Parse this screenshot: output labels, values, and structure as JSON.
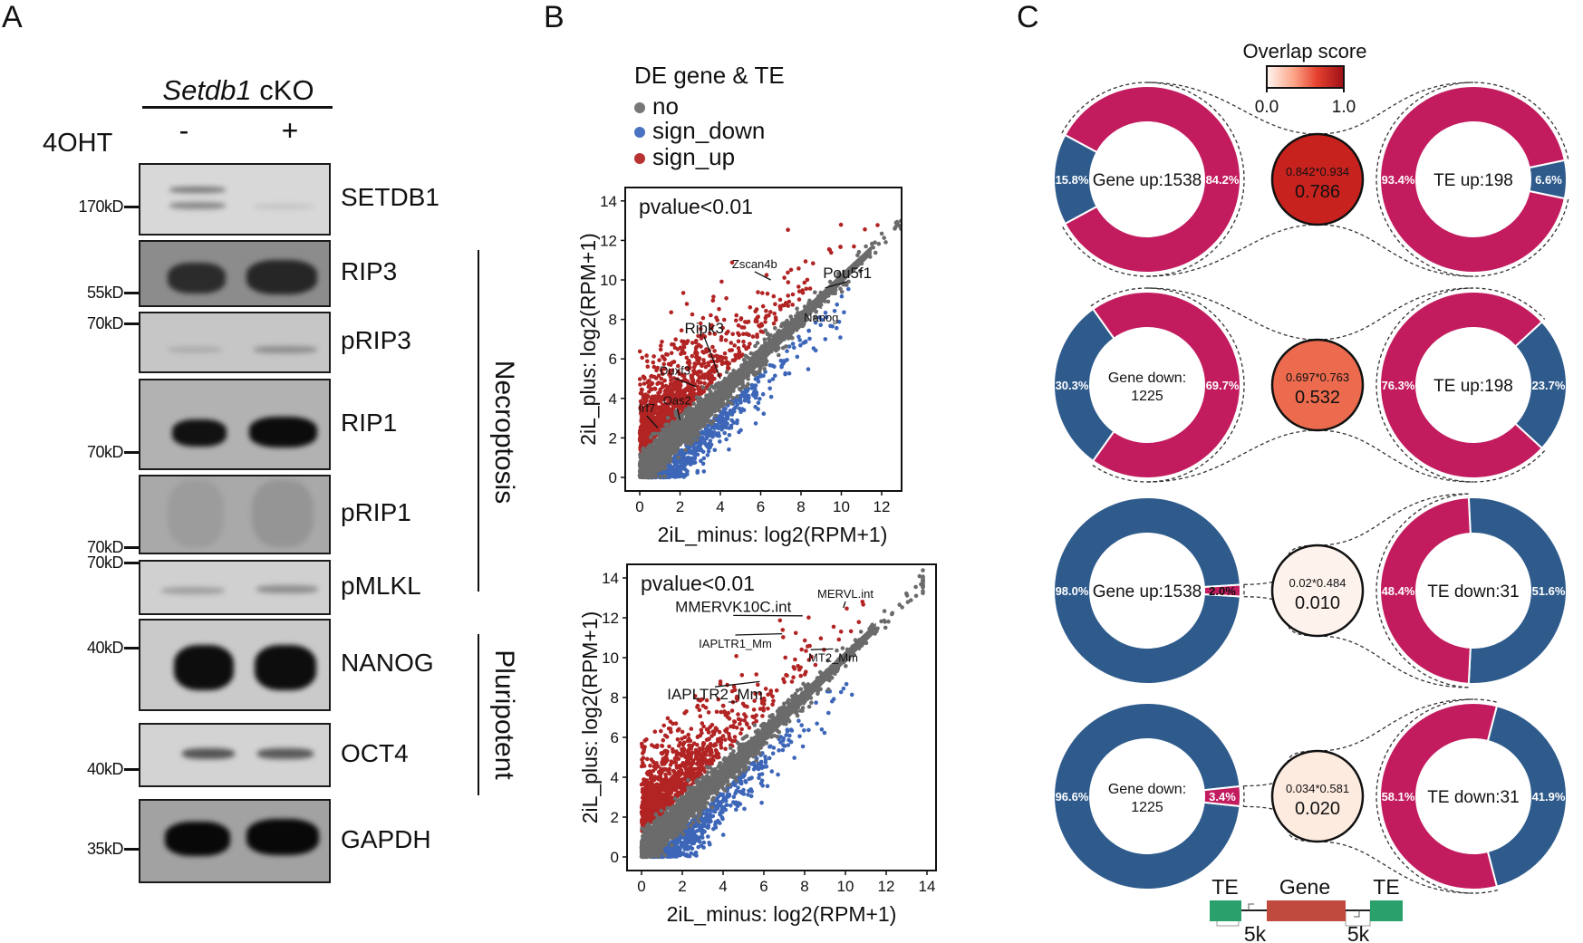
{
  "panel_labels": {
    "a": "A",
    "b": "B",
    "c": "C"
  },
  "panel_a": {
    "group_label_italic": "Setdb1",
    "group_label_rest": " cKO",
    "treatment_label": "4OHT",
    "lanes": [
      "-",
      "+"
    ],
    "blots": [
      {
        "label": "SETDB1"
      },
      {
        "label": "RIP3"
      },
      {
        "label": "pRIP3"
      },
      {
        "label": "RIP1"
      },
      {
        "label": "pRIP1"
      },
      {
        "label": "pMLKL"
      },
      {
        "label": "NANOG"
      },
      {
        "label": "OCT4"
      },
      {
        "label": "GAPDH"
      }
    ],
    "markers": [
      "170kD",
      "55kD",
      "70kD",
      "70kD",
      "70kD",
      "70kD",
      "40kD",
      "40kD",
      "35kD"
    ],
    "groups": [
      "Necroptosis",
      "Pluripotent"
    ]
  },
  "panel_b": {
    "legend": {
      "title": "DE gene & TE",
      "items": [
        {
          "label": "no",
          "color": "#777777"
        },
        {
          "label": "sign_down",
          "color": "#4a72c0"
        },
        {
          "label": "sign_up",
          "color": "#b83232"
        }
      ]
    }
  },
  "chart_data": [
    {
      "type": "scatter",
      "annotation": "pvalue<0.01",
      "xlabel": "2iL_minus: log2(RPM+1)",
      "ylabel": "2iL_plus: log2(RPM+1)",
      "xlim": [
        0,
        13.8
      ],
      "ylim": [
        0,
        14
      ],
      "xticks": [
        "0",
        "2",
        "4",
        "6",
        "8",
        "10",
        "12"
      ],
      "yticks": [
        "0",
        "2",
        "4",
        "6",
        "8",
        "10",
        "12",
        "14"
      ],
      "series_colors": {
        "no": "#6b6b6b",
        "sign_down": "#3d66b8",
        "sign_up": "#b22424"
      },
      "labeled_points": [
        {
          "label": "Zscan4b",
          "x": 6.5,
          "y": 10.0,
          "label_x": 5.7,
          "label_y": 10.6
        },
        {
          "label": "Pou5f1",
          "x": 9.2,
          "y": 9.6,
          "label_x": 10.3,
          "label_y": 10.1
        },
        {
          "label": "Nanog",
          "x": 9.0,
          "y": 8.6,
          "label_x": 9.0,
          "label_y": 7.9
        },
        {
          "label": "Ripk3",
          "x": 4.0,
          "y": 5.0,
          "label_x": 3.2,
          "label_y": 7.3
        },
        {
          "label": "Duxf3",
          "x": 2.8,
          "y": 4.6,
          "label_x": 1.75,
          "label_y": 5.2
        },
        {
          "label": "Oas2",
          "x": 2.0,
          "y": 2.9,
          "label_x": 1.85,
          "label_y": 3.7
        },
        {
          "label": "Irf7",
          "x": 0.9,
          "y": 2.5,
          "label_x": 0.35,
          "label_y": 3.3
        }
      ]
    },
    {
      "type": "scatter",
      "annotation": "pvalue<0.01",
      "xlabel": "2iL_minus: log2(RPM+1)",
      "ylabel": "2iL_plus: log2(RPM+1)",
      "xlim": [
        0,
        14
      ],
      "ylim": [
        0,
        14
      ],
      "xticks": [
        "0",
        "2",
        "4",
        "6",
        "8",
        "10",
        "12",
        "14"
      ],
      "yticks": [
        "0",
        "2",
        "4",
        "6",
        "8",
        "10",
        "12",
        "14"
      ],
      "series_colors": {
        "no": "#6b6b6b",
        "sign_down": "#3d66b8",
        "sign_up": "#b22424"
      },
      "labeled_points": [
        {
          "label": "MMERVK10C.int",
          "x": 7.9,
          "y": 12.1,
          "label_x": 4.5,
          "label_y": 12.3
        },
        {
          "label": "MERVL.int",
          "x": 9.9,
          "y": 12.5,
          "label_x": 10.0,
          "label_y": 13.0
        },
        {
          "label": "IAPLTR1_Mm",
          "x": 6.9,
          "y": 11.2,
          "label_x": 4.6,
          "label_y": 10.5
        },
        {
          "label": "MT2_Mm",
          "x": 8.3,
          "y": 10.4,
          "label_x": 9.4,
          "label_y": 9.8
        },
        {
          "label": "IAPLTR2_Mm",
          "x": 5.8,
          "y": 8.8,
          "label_x": 3.6,
          "label_y": 7.9
        }
      ]
    },
    {
      "type": "pie",
      "variant": "donut",
      "colorbar": {
        "title": "Overlap score",
        "min_label": "0.0",
        "max_label": "1.0",
        "range": [
          0,
          1
        ]
      },
      "colors": {
        "overlap": "#c21c5f",
        "non_overlap": "#2f5b8c"
      },
      "rows": [
        {
          "left": {
            "label": [
              "Gene up:1538"
            ],
            "overlap": 84.2,
            "other": 15.8,
            "overlap_label": "84.2%",
            "other_label": "15.8%"
          },
          "right": {
            "label": [
              "TE up:198"
            ],
            "overlap": 93.4,
            "other": 6.6,
            "overlap_label": "93.4%",
            "other_label": "6.6%"
          },
          "formula": "0.842*0.934",
          "score": "0.786",
          "score_value": 0.786,
          "fill": "#c8221f"
        },
        {
          "left": {
            "label": [
              "Gene down:",
              "1225"
            ],
            "overlap": 69.7,
            "other": 30.3,
            "overlap_label": "69.7%",
            "other_label": "30.3%"
          },
          "right": {
            "label": [
              "TE up:198"
            ],
            "overlap": 76.3,
            "other": 23.7,
            "overlap_label": "76.3%",
            "other_label": "23.7%"
          },
          "formula": "0.697*0.763",
          "score": "0.532",
          "score_value": 0.532,
          "fill": "#ec6b4e"
        },
        {
          "left": {
            "label": [
              "Gene up:1538"
            ],
            "overlap": 2.0,
            "other": 98.0,
            "overlap_label": "2.0%",
            "other_label": "98.0%"
          },
          "right": {
            "label": [
              "TE down:31"
            ],
            "overlap": 48.4,
            "other": 51.6,
            "overlap_label": "48.4%",
            "other_label": "51.6%"
          },
          "formula": "0.02*0.484",
          "score": "0.010",
          "score_value": 0.01,
          "fill": "#fdf2ec"
        },
        {
          "left": {
            "label": [
              "Gene down:",
              "1225"
            ],
            "overlap": 3.4,
            "other": 96.6,
            "overlap_label": "3.4%",
            "other_label": "96.6%"
          },
          "right": {
            "label": [
              "TE down:31"
            ],
            "overlap": 58.1,
            "other": 41.9,
            "overlap_label": "58.1%",
            "other_label": "41.9%"
          },
          "formula": "0.034*0.581",
          "score": "0.020",
          "score_value": 0.02,
          "fill": "#fdebe0"
        }
      ],
      "schematic": {
        "te_left": "TE",
        "gene": "Gene",
        "te_right": "TE",
        "distance_left": "5k",
        "distance_right": "5k",
        "te_color": "#2aa06c",
        "gene_color": "#bf4a3d"
      }
    }
  ]
}
